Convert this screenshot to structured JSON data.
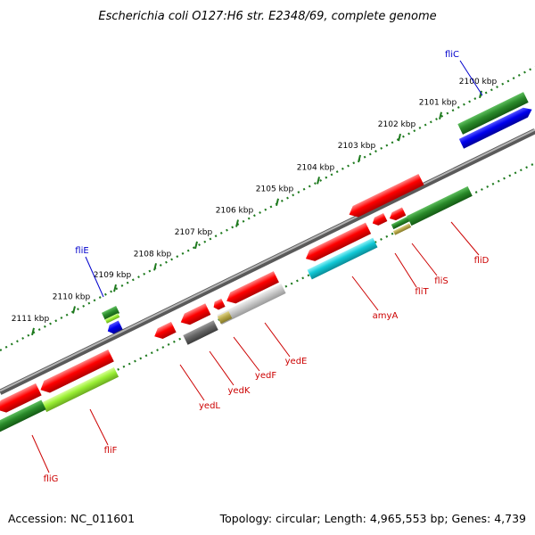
{
  "title": "Escherichia coli O127:H6 str. E2348/69, complete genome",
  "footer": {
    "accession": "Accession: NC_011601",
    "summary": "Topology: circular; Length: 4,965,553 bp; Genes: 4,739"
  },
  "colors": {
    "backbone": "#808080",
    "tick": "#1e7a1e",
    "label_red": "#cc0000",
    "label_blue": "#0000cc",
    "red": "#ff0000",
    "green": "#2a8a2a",
    "blue": "#0000ee",
    "cyan": "#11c8d6",
    "lime": "#99ee33",
    "gray_dark": "#666666",
    "gray_light": "#c8c8c8",
    "olive": "#b8a84a"
  },
  "ticks": [
    {
      "label": "2100 kbp"
    },
    {
      "label": "2101 kbp"
    },
    {
      "label": "2102 kbp"
    },
    {
      "label": "2103 kbp"
    },
    {
      "label": "2104 kbp"
    },
    {
      "label": "2105 kbp"
    },
    {
      "label": "2106 kbp"
    },
    {
      "label": "2107 kbp"
    },
    {
      "label": "2108 kbp"
    },
    {
      "label": "2109 kbp"
    },
    {
      "label": "2110 kbp"
    },
    {
      "label": "2111 kbp"
    }
  ],
  "gene_labels": {
    "fliC": "fliC",
    "fliE": "fliE",
    "fliD": "fliD",
    "fliS": "fliS",
    "fliT": "fliT",
    "amyA": "amyA",
    "yedE": "yedE",
    "yedF": "yedF",
    "yedK": "yedK",
    "yedL": "yedL",
    "fliF": "fliF",
    "fliG": "fliG"
  }
}
